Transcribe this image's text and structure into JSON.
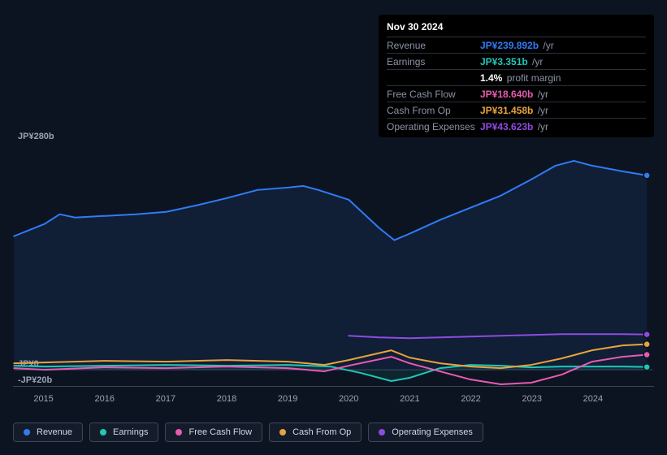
{
  "chart": {
    "type": "area-line",
    "background_color": "#0d1421",
    "grid_color": "#3d4557",
    "label_color": "#9aa3b5",
    "label_fontsize": 11,
    "ylim": [
      -20,
      280
    ],
    "ylabels": [
      {
        "v": 280,
        "text": "JP¥280b"
      },
      {
        "v": 0,
        "text": "JP¥0"
      },
      {
        "v": -20,
        "text": "-JP¥20b"
      }
    ],
    "x_start": 2014.5,
    "x_end": 2025.0,
    "xticks": [
      2015,
      2016,
      2017,
      2018,
      2019,
      2020,
      2021,
      2022,
      2023,
      2024
    ],
    "series": [
      {
        "key": "revenue",
        "label": "Revenue",
        "color": "#2f7cf6",
        "fill_opacity": 0.1,
        "data": [
          [
            2014.5,
            165
          ],
          [
            2015.0,
            180
          ],
          [
            2015.25,
            192
          ],
          [
            2015.5,
            188
          ],
          [
            2016.0,
            190
          ],
          [
            2016.5,
            192
          ],
          [
            2017.0,
            195
          ],
          [
            2017.5,
            203
          ],
          [
            2018.0,
            212
          ],
          [
            2018.5,
            222
          ],
          [
            2019.0,
            225
          ],
          [
            2019.25,
            227
          ],
          [
            2019.5,
            222
          ],
          [
            2020.0,
            210
          ],
          [
            2020.5,
            175
          ],
          [
            2020.75,
            160
          ],
          [
            2021.0,
            168
          ],
          [
            2021.5,
            185
          ],
          [
            2022.0,
            200
          ],
          [
            2022.5,
            215
          ],
          [
            2023.0,
            235
          ],
          [
            2023.4,
            252
          ],
          [
            2023.7,
            258
          ],
          [
            2024.0,
            252
          ],
          [
            2024.5,
            245
          ],
          [
            2024.9,
            240
          ]
        ]
      },
      {
        "key": "earnings",
        "label": "Earnings",
        "color": "#1fc7b6",
        "fill_opacity": 0.1,
        "data": [
          [
            2014.5,
            5
          ],
          [
            2015,
            4
          ],
          [
            2016,
            5
          ],
          [
            2017,
            6
          ],
          [
            2018,
            5
          ],
          [
            2019,
            6
          ],
          [
            2019.7,
            4
          ],
          [
            2020.2,
            -4
          ],
          [
            2020.7,
            -14
          ],
          [
            2021.0,
            -10
          ],
          [
            2021.5,
            2
          ],
          [
            2022,
            6
          ],
          [
            2022.5,
            5
          ],
          [
            2023,
            3
          ],
          [
            2023.5,
            4
          ],
          [
            2024,
            4
          ],
          [
            2024.5,
            4
          ],
          [
            2024.9,
            3.4
          ]
        ]
      },
      {
        "key": "fcf",
        "label": "Free Cash Flow",
        "color": "#e85bb0",
        "fill_opacity": 0.0,
        "data": [
          [
            2014.5,
            2
          ],
          [
            2015,
            0
          ],
          [
            2016,
            3
          ],
          [
            2017,
            2
          ],
          [
            2018,
            4
          ],
          [
            2019,
            2
          ],
          [
            2019.6,
            -2
          ],
          [
            2020,
            5
          ],
          [
            2020.7,
            16
          ],
          [
            2021,
            8
          ],
          [
            2021.5,
            -2
          ],
          [
            2022,
            -12
          ],
          [
            2022.5,
            -18
          ],
          [
            2023,
            -16
          ],
          [
            2023.5,
            -6
          ],
          [
            2024,
            10
          ],
          [
            2024.5,
            16
          ],
          [
            2024.9,
            18.6
          ]
        ]
      },
      {
        "key": "cfo",
        "label": "Cash From Op",
        "color": "#e8a33b",
        "fill_opacity": 0.0,
        "data": [
          [
            2014.5,
            8
          ],
          [
            2015,
            9
          ],
          [
            2016,
            11
          ],
          [
            2017,
            10
          ],
          [
            2018,
            12
          ],
          [
            2019,
            10
          ],
          [
            2019.6,
            6
          ],
          [
            2020,
            12
          ],
          [
            2020.7,
            24
          ],
          [
            2021,
            15
          ],
          [
            2021.5,
            8
          ],
          [
            2022,
            4
          ],
          [
            2022.5,
            2
          ],
          [
            2023,
            6
          ],
          [
            2023.5,
            14
          ],
          [
            2024,
            24
          ],
          [
            2024.5,
            30
          ],
          [
            2024.9,
            31.5
          ]
        ]
      },
      {
        "key": "opex",
        "label": "Operating Expenses",
        "color": "#8f4bdf",
        "fill_opacity": 0.0,
        "partial_start": 2020.0,
        "data": [
          [
            2020.0,
            42
          ],
          [
            2020.5,
            40
          ],
          [
            2021,
            39
          ],
          [
            2021.5,
            40
          ],
          [
            2022,
            41
          ],
          [
            2022.5,
            42
          ],
          [
            2023,
            43
          ],
          [
            2023.5,
            44
          ],
          [
            2024,
            44
          ],
          [
            2024.5,
            44
          ],
          [
            2024.9,
            43.6
          ]
        ]
      }
    ],
    "marker_x": 2024.92
  },
  "tooltip": {
    "date": "Nov 30 2024",
    "rows": [
      {
        "label": "Revenue",
        "value": "JP¥239.892b",
        "suffix": "/yr",
        "color": "#2f7cf6"
      },
      {
        "label": "Earnings",
        "value": "JP¥3.351b",
        "suffix": "/yr",
        "color": "#1fc7b6",
        "extra_value": "1.4%",
        "extra_label": "profit margin"
      },
      {
        "label": "Free Cash Flow",
        "value": "JP¥18.640b",
        "suffix": "/yr",
        "color": "#e85bb0"
      },
      {
        "label": "Cash From Op",
        "value": "JP¥31.458b",
        "suffix": "/yr",
        "color": "#e8a33b"
      },
      {
        "label": "Operating Expenses",
        "value": "JP¥43.623b",
        "suffix": "/yr",
        "color": "#8f4bdf"
      }
    ]
  },
  "legend": {
    "border_color": "#3d4557",
    "bg_color": "#141c2c",
    "items": [
      {
        "label": "Revenue",
        "color": "#2f7cf6"
      },
      {
        "label": "Earnings",
        "color": "#1fc7b6"
      },
      {
        "label": "Free Cash Flow",
        "color": "#e85bb0"
      },
      {
        "label": "Cash From Op",
        "color": "#e8a33b"
      },
      {
        "label": "Operating Expenses",
        "color": "#8f4bdf"
      }
    ]
  }
}
